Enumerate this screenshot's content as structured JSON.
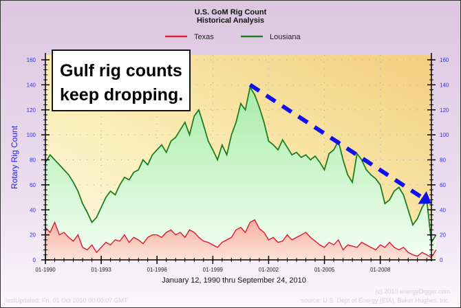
{
  "chart_data": {
    "type": "line",
    "title": "U.S. GoM Rig Count",
    "subtitle": "Historical Analysis",
    "xlabel": "January 12, 1990 thru September 24, 2010",
    "ylabel": "Rotary Rig Count",
    "xlim": [
      1990,
      2010.75
    ],
    "ylim": [
      0,
      160
    ],
    "x_ticks": [
      1990,
      1993,
      1996,
      1999,
      2002,
      2005,
      2008
    ],
    "x_tick_labels": [
      "01-1990",
      "01-1993",
      "01-1996",
      "01-1999",
      "01-2002",
      "01-2005",
      "01-2008"
    ],
    "y_ticks": [
      0,
      20,
      40,
      60,
      80,
      100,
      120,
      140,
      160
    ],
    "y_tick_labels": [
      "0",
      "20",
      "40",
      "60",
      "80",
      "100",
      "120",
      "140",
      "160"
    ],
    "grid": true,
    "legend_position": "top-center",
    "x_start": 1990,
    "x_step": 0.25,
    "series": [
      {
        "name": "Texas",
        "color": "#e0203a",
        "fill": "#f7c0b0",
        "values": [
          26,
          22,
          30,
          20,
          22,
          18,
          15,
          20,
          10,
          8,
          12,
          6,
          10,
          14,
          12,
          16,
          15,
          20,
          14,
          18,
          16,
          13,
          18,
          20,
          20,
          18,
          22,
          24,
          20,
          22,
          18,
          24,
          22,
          18,
          15,
          14,
          12,
          10,
          14,
          16,
          18,
          24,
          26,
          22,
          30,
          32,
          25,
          22,
          16,
          18,
          14,
          15,
          20,
          16,
          18,
          20,
          22,
          18,
          15,
          12,
          10,
          14,
          12,
          16,
          8,
          12,
          11,
          10,
          14,
          12,
          10,
          8,
          12,
          10,
          14,
          10,
          8,
          10,
          6,
          4,
          3,
          6,
          4,
          2,
          8
        ]
      },
      {
        "name": "Lousiana",
        "color": "#1e7d1e",
        "fill": "#c4f2c4",
        "values": [
          78,
          84,
          80,
          76,
          72,
          68,
          62,
          55,
          45,
          38,
          30,
          34,
          42,
          50,
          55,
          52,
          60,
          66,
          64,
          70,
          72,
          80,
          76,
          84,
          88,
          92,
          86,
          95,
          98,
          104,
          110,
          100,
          115,
          120,
          108,
          95,
          88,
          80,
          92,
          84,
          100,
          110,
          125,
          120,
          138,
          132,
          122,
          110,
          95,
          92,
          88,
          96,
          90,
          84,
          86,
          82,
          84,
          80,
          83,
          78,
          72,
          85,
          88,
          95,
          80,
          68,
          62,
          85,
          80,
          72,
          68,
          65,
          60,
          45,
          48,
          55,
          58,
          52,
          40,
          28,
          33,
          42,
          48,
          14,
          20
        ]
      }
    ],
    "annotation": {
      "text_line1": "Gulf rig counts",
      "text_line2": "keep dropping.",
      "arrow_from": [
        2001.0,
        140
      ],
      "arrow_to": [
        2010.75,
        45
      ],
      "arrow_color": "#1010ee"
    },
    "footer": {
      "copyright": "(c) 2010 energyDigger.com",
      "updated": "lastUpdated: Fri, 01 Oct 2010 00:00:07 GMT",
      "source": "source: U.S. Dept of Energy (EIA), Baker Hughes, Inc."
    }
  }
}
